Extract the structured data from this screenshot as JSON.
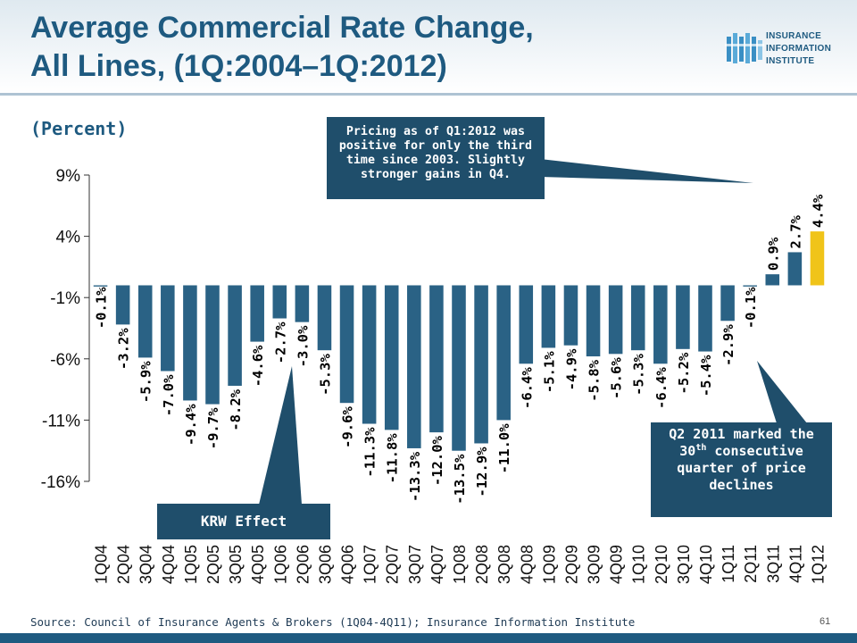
{
  "title_line1": "Average Commercial Rate Change,",
  "title_line2": "All Lines, (1Q:2004–1Q:2012)",
  "subtitle": "(Percent)",
  "logo": {
    "line1": "INSURANCE",
    "line2": "INFORMATION",
    "line3": "INSTITUTE"
  },
  "callout_top": "Pricing as of Q1:2012 was positive for only the third time since 2003. Slightly stronger gains in Q4.",
  "callout_q2": {
    "pre": "Q2 2011 marked the 30",
    "sup": "th",
    "post": "consecutive quarter of price declines"
  },
  "callout_krw": "KRW Effect",
  "source": "Source:  Council of Insurance Agents & Brokers (1Q04-4Q11); Insurance Information Institute",
  "page_number": "61",
  "colors": {
    "bar": "#2a6285",
    "highlight": "#f0c419",
    "callout": "#1f4e6b",
    "title": "#1e5a80"
  },
  "chart_data": {
    "type": "bar",
    "title": "Average Commercial Rate Change, All Lines, (1Q:2004–1Q:2012)",
    "ylabel": "(Percent)",
    "ylim": [
      -16,
      9
    ],
    "yticks": [
      9,
      4,
      -1,
      -6,
      -11,
      -16
    ],
    "ytick_labels": [
      "9%",
      "4%",
      "-1%",
      "-6%",
      "-11%",
      "-16%"
    ],
    "categories": [
      "1Q04",
      "2Q04",
      "3Q04",
      "4Q04",
      "1Q05",
      "2Q05",
      "3Q05",
      "4Q05",
      "1Q06",
      "2Q06",
      "3Q06",
      "4Q06",
      "1Q07",
      "2Q07",
      "3Q07",
      "4Q07",
      "1Q08",
      "2Q08",
      "3Q08",
      "4Q08",
      "1Q09",
      "2Q09",
      "3Q09",
      "4Q09",
      "1Q10",
      "2Q10",
      "3Q10",
      "4Q10",
      "1Q11",
      "2Q11",
      "3Q11",
      "4Q11",
      "1Q12"
    ],
    "values": [
      -0.1,
      -3.2,
      -5.9,
      -7.0,
      -9.4,
      -9.7,
      -8.2,
      -4.6,
      -2.7,
      -3.0,
      -5.3,
      -9.6,
      -11.3,
      -11.8,
      -13.3,
      -12.0,
      -13.5,
      -12.9,
      -11.0,
      -6.4,
      -5.1,
      -4.9,
      -5.8,
      -5.6,
      -5.3,
      -6.4,
      -5.2,
      -5.4,
      -2.9,
      -0.1,
      0.9,
      2.7,
      4.4
    ],
    "data_labels": [
      "-0.1%",
      "-3.2%",
      "-5.9%",
      "-7.0%",
      "-9.4%",
      "-9.7%",
      "-8.2%",
      "-4.6%",
      "-2.7%",
      "-3.0%",
      "-5.3%",
      "-9.6%",
      "-11.3%",
      "-11.8%",
      "-13.3%",
      "-12.0%",
      "-13.5%",
      "-12.9%",
      "-11.0%",
      "-6.4%",
      "-5.1%",
      "-4.9%",
      "-5.8%",
      "-5.6%",
      "-5.3%",
      "-6.4%",
      "-5.2%",
      "-5.4%",
      "-2.9%",
      "-0.1%",
      "0.9%",
      "2.7%",
      "4.4%"
    ],
    "highlight_categories": [
      "1Q12"
    ],
    "grid": false,
    "legend": "none"
  }
}
